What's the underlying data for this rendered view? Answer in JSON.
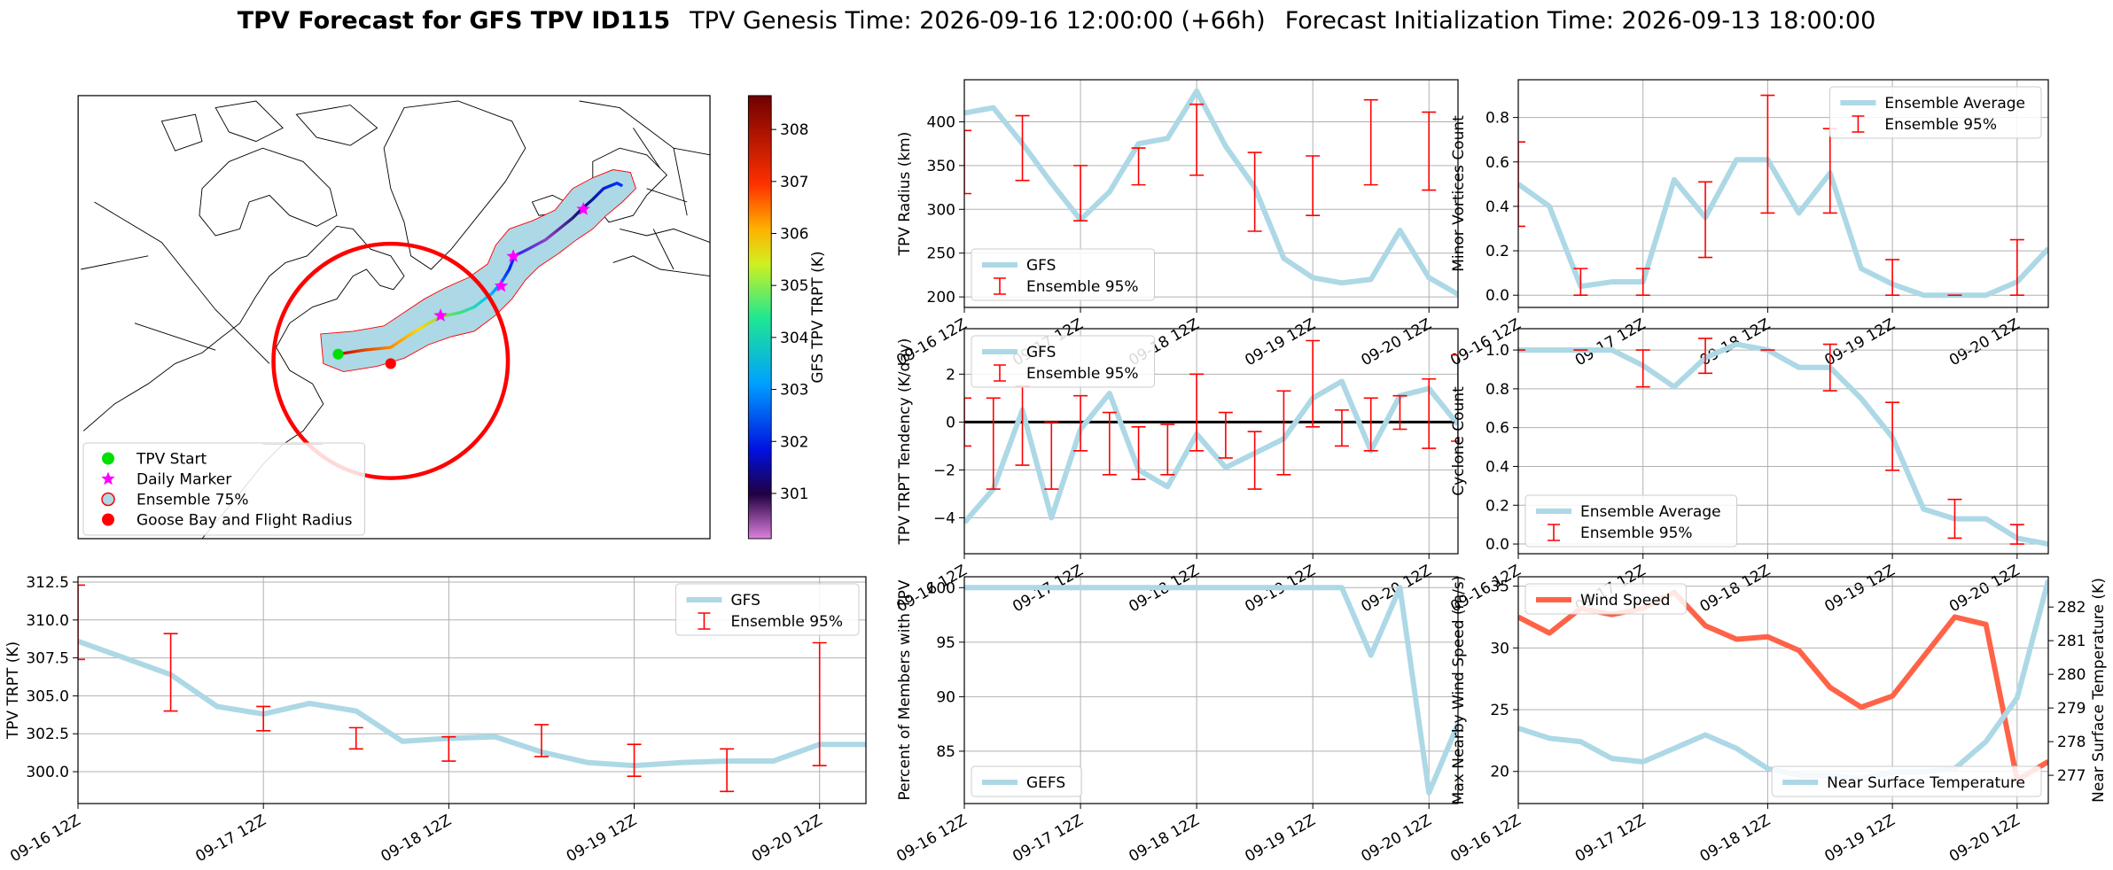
{
  "title": "TPV Forecast for GFS TPV ID115",
  "genesis": "TPV Genesis Time: 2026-09-16 12:00:00 (+66h)",
  "init": "Forecast Initialization Time: 2026-09-13 18:00:00",
  "chart_data": [
    {
      "type": "map",
      "colorbar_label": "GFS TPV TRPT (K)",
      "clim": [
        300.13,
        308.65
      ],
      "cticks": [
        301,
        302,
        303,
        304,
        305,
        306,
        307,
        308
      ],
      "legend_loc": "lower left",
      "legend": [
        {
          "label": "TPV Start",
          "color": "#00e000",
          "marker": "circle"
        },
        {
          "label": "Daily Marker",
          "color": "#ff00ff",
          "marker": "star"
        },
        {
          "label": "Ensemble 75%",
          "color": "#add8e6",
          "edgecolor": "red",
          "marker": "circle"
        },
        {
          "label": "Goose Bay and Flight Radius",
          "color": "red",
          "marker": "circle"
        }
      ]
    },
    {
      "type": "line",
      "ylabel": "TPV Radius (km)",
      "x": [
        "09-16 12Z",
        "09-16 18Z",
        "09-17 00Z",
        "09-17 06Z",
        "09-17 12Z",
        "09-17 18Z",
        "09-18 00Z",
        "09-18 06Z",
        "09-18 12Z",
        "09-18 18Z",
        "09-19 00Z",
        "09-19 06Z",
        "09-19 12Z",
        "09-19 18Z",
        "09-20 00Z",
        "09-20 06Z",
        "09-20 12Z",
        "09-20 18Z"
      ],
      "series": [
        {
          "name": "GFS",
          "color": "#add8e6",
          "values": [
            410,
            416,
            375,
            330,
            288,
            320,
            375,
            381,
            435,
            372,
            325,
            244,
            222,
            216,
            220,
            276,
            222,
            203
          ]
        }
      ],
      "ensemble": {
        "name": "Ensemble 95%",
        "color": "red",
        "x": [
          "09-16 12Z",
          "09-17 00Z",
          "09-17 12Z",
          "09-18 00Z",
          "09-18 12Z",
          "09-19 00Z",
          "09-19 12Z",
          "09-20 00Z",
          "09-20 12Z"
        ],
        "low": [
          318,
          333,
          287,
          328,
          339,
          275,
          293,
          328,
          322
        ],
        "high": [
          390,
          407,
          350,
          370,
          420,
          365,
          361,
          425,
          411
        ]
      },
      "xlim": [
        "09-16 12Z",
        "09-20 18Z"
      ],
      "xticks": [
        "09-16 12Z",
        "09-17 12Z",
        "09-18 12Z",
        "09-19 12Z",
        "09-20 12Z"
      ],
      "ylim": [
        188,
        448
      ],
      "yticks": [
        200,
        250,
        300,
        350,
        400
      ],
      "grid": true,
      "legend": "lower left"
    },
    {
      "type": "line",
      "ylabel": "Minor Vortices Count",
      "x": [
        "09-16 12Z",
        "09-16 18Z",
        "09-17 00Z",
        "09-17 06Z",
        "09-17 12Z",
        "09-17 18Z",
        "09-18 00Z",
        "09-18 06Z",
        "09-18 12Z",
        "09-18 18Z",
        "09-19 00Z",
        "09-19 06Z",
        "09-19 12Z",
        "09-19 18Z",
        "09-20 00Z",
        "09-20 06Z",
        "09-20 12Z",
        "09-20 18Z"
      ],
      "series": [
        {
          "name": "Ensemble Average",
          "color": "#add8e6",
          "values": [
            0.5,
            0.4,
            0.04,
            0.06,
            0.06,
            0.52,
            0.35,
            0.61,
            0.61,
            0.37,
            0.55,
            0.12,
            0.05,
            0,
            0,
            0,
            0.06,
            0.21
          ]
        }
      ],
      "ensemble": {
        "name": "Ensemble 95%",
        "color": "red",
        "x": [
          "09-16 12Z",
          "09-17 00Z",
          "09-17 12Z",
          "09-18 00Z",
          "09-18 12Z",
          "09-19 00Z",
          "09-19 12Z",
          "09-20 00Z",
          "09-20 12Z"
        ],
        "low": [
          0.31,
          0,
          0,
          0.17,
          0.37,
          0.37,
          0,
          0,
          0
        ],
        "high": [
          0.69,
          0.12,
          0.12,
          0.51,
          0.9,
          0.75,
          0.16,
          0,
          0.25
        ]
      },
      "xlim": [
        "09-16 12Z",
        "09-20 18Z"
      ],
      "xticks": [
        "09-16 12Z",
        "09-17 12Z",
        "09-18 12Z",
        "09-19 12Z",
        "09-20 12Z"
      ],
      "ylim": [
        -0.055,
        0.97
      ],
      "yticks": [
        {
          "value": 0,
          "label": "0.0"
        },
        0.2,
        0.4,
        0.6,
        0.8
      ],
      "grid": true,
      "legend": "upper right"
    },
    {
      "type": "line",
      "ylabel": "TPV TRPT Tendency (K/day)",
      "x": [
        "09-16 12Z",
        "09-16 18Z",
        "09-17 00Z",
        "09-17 06Z",
        "09-17 12Z",
        "09-17 18Z",
        "09-18 00Z",
        "09-18 06Z",
        "09-18 12Z",
        "09-18 18Z",
        "09-19 00Z",
        "09-19 06Z",
        "09-19 12Z",
        "09-19 18Z",
        "09-20 00Z",
        "09-20 06Z",
        "09-20 12Z",
        "09-20 18Z"
      ],
      "series": [
        {
          "name": "GFS",
          "color": "#add8e6",
          "values": [
            -4.2,
            -2.8,
            0.5,
            -4.0,
            -0.3,
            1.2,
            -2.0,
            -2.7,
            -0.5,
            -1.9,
            -1.3,
            -0.7,
            1.0,
            1.7,
            -1.2,
            1.1,
            1.4,
            -0.1
          ]
        }
      ],
      "ensemble": {
        "name": "Ensemble 95%",
        "color": "red",
        "x": [
          "09-16 12Z",
          "09-16 18Z",
          "09-17 00Z",
          "09-17 06Z",
          "09-17 12Z",
          "09-17 18Z",
          "09-18 00Z",
          "09-18 06Z",
          "09-18 12Z",
          "09-18 18Z",
          "09-19 00Z",
          "09-19 06Z",
          "09-19 12Z",
          "09-19 18Z",
          "09-20 00Z",
          "09-20 06Z",
          "09-20 12Z",
          "09-20 18Z"
        ],
        "low": [
          -1,
          -2.8,
          -1.8,
          -2.8,
          -1.2,
          -2.2,
          -2.4,
          -2.2,
          -1.2,
          -1.5,
          -2.8,
          -2.2,
          -0.2,
          -1.0,
          -1.2,
          -0.3,
          -1.1,
          -0.8
        ],
        "high": [
          1,
          1.0,
          1.5,
          0,
          1.1,
          0.4,
          -0.2,
          -0.1,
          2.0,
          0.4,
          -0.4,
          1.3,
          3.4,
          0.5,
          1.0,
          1.1,
          1.8,
          2.8
        ]
      },
      "hline": 0,
      "xlim": [
        "09-16 12Z",
        "09-20 18Z"
      ],
      "xticks": [
        "09-16 12Z",
        "09-17 12Z",
        "09-18 12Z",
        "09-19 12Z",
        "09-20 12Z"
      ],
      "ylim": [
        -5.5,
        3.9
      ],
      "yticks": [
        {
          "value": -4,
          "label": "−4"
        },
        {
          "value": -2,
          "label": "−2"
        },
        0,
        2
      ],
      "grid": true,
      "legend": "upper left"
    },
    {
      "type": "line",
      "ylabel": "Cyclone Count",
      "x": [
        "09-16 12Z",
        "09-16 18Z",
        "09-17 00Z",
        "09-17 06Z",
        "09-17 12Z",
        "09-17 18Z",
        "09-18 00Z",
        "09-18 06Z",
        "09-18 12Z",
        "09-18 18Z",
        "09-19 00Z",
        "09-19 06Z",
        "09-19 12Z",
        "09-19 18Z",
        "09-20 00Z",
        "09-20 06Z",
        "09-20 12Z",
        "09-20 18Z"
      ],
      "series": [
        {
          "name": "Ensemble Average",
          "color": "#add8e6",
          "values": [
            1,
            1,
            1,
            1,
            0.92,
            0.81,
            0.96,
            1.03,
            1.0,
            0.91,
            0.91,
            0.75,
            0.55,
            0.18,
            0.13,
            0.13,
            0.03,
            0
          ]
        }
      ],
      "ensemble": {
        "name": "Ensemble 95%",
        "color": "red",
        "x": [
          "09-16 12Z",
          "09-17 00Z",
          "09-17 12Z",
          "09-18 00Z",
          "09-18 12Z",
          "09-19 00Z",
          "09-19 12Z",
          "09-20 00Z",
          "09-20 12Z"
        ],
        "low": [
          1,
          1,
          0.81,
          0.88,
          1,
          0.79,
          0.38,
          0.03,
          0
        ],
        "high": [
          1,
          1,
          1.0,
          1.06,
          1,
          1.03,
          0.73,
          0.23,
          0.1
        ]
      },
      "xlim": [
        "09-16 12Z",
        "09-20 18Z"
      ],
      "xticks": [
        "09-16 12Z",
        "09-17 12Z",
        "09-18 12Z",
        "09-19 12Z",
        "09-20 12Z"
      ],
      "ylim": [
        -0.05,
        1.11
      ],
      "yticks": [
        {
          "value": 0,
          "label": "0.0"
        },
        0.2,
        0.4,
        0.6,
        0.8,
        {
          "value": 1,
          "label": "1.0"
        }
      ],
      "grid": true,
      "legend": "lower left"
    },
    {
      "type": "line",
      "ylabel": "TPV TRPT (K)",
      "x": [
        "09-16 12Z",
        "09-16 18Z",
        "09-17 00Z",
        "09-17 06Z",
        "09-17 12Z",
        "09-17 18Z",
        "09-18 00Z",
        "09-18 06Z",
        "09-18 12Z",
        "09-18 18Z",
        "09-19 00Z",
        "09-19 06Z",
        "09-19 12Z",
        "09-19 18Z",
        "09-20 00Z",
        "09-20 06Z",
        "09-20 12Z",
        "09-20 18Z"
      ],
      "series": [
        {
          "name": "GFS",
          "color": "#add8e6",
          "values": [
            308.6,
            307.5,
            306.4,
            304.3,
            303.8,
            304.5,
            304.0,
            302.0,
            302.2,
            302.3,
            301.3,
            300.6,
            300.4,
            300.6,
            300.7,
            300.7,
            301.8,
            301.8
          ]
        }
      ],
      "ensemble": {
        "name": "Ensemble 95%",
        "color": "red",
        "x": [
          "09-16 12Z",
          "09-17 00Z",
          "09-17 12Z",
          "09-18 00Z",
          "09-18 12Z",
          "09-19 00Z",
          "09-19 12Z",
          "09-20 00Z",
          "09-20 12Z"
        ],
        "low": [
          307.4,
          304.0,
          302.7,
          301.5,
          300.7,
          301.0,
          299.7,
          298.7,
          300.4
        ],
        "high": [
          312.3,
          309.1,
          304.3,
          302.9,
          302.3,
          303.1,
          301.8,
          301.5,
          308.5
        ]
      },
      "xlim": [
        "09-16 12Z",
        "09-20 18Z"
      ],
      "xticks": [
        "09-16 12Z",
        "09-17 12Z",
        "09-18 12Z",
        "09-19 12Z",
        "09-20 12Z"
      ],
      "ylim": [
        297.9,
        312.85
      ],
      "yticks": [
        {
          "value": 300,
          "label": "300.0"
        },
        302.5,
        {
          "value": 305,
          "label": "305.0"
        },
        307.5,
        {
          "value": 310,
          "label": "310.0"
        },
        312.5
      ],
      "grid": true,
      "legend": "upper right"
    },
    {
      "type": "line",
      "ylabel": "Percent of Members with TPV",
      "x": [
        "09-16 12Z",
        "09-16 18Z",
        "09-17 00Z",
        "09-17 06Z",
        "09-17 12Z",
        "09-17 18Z",
        "09-18 00Z",
        "09-18 06Z",
        "09-18 12Z",
        "09-18 18Z",
        "09-19 00Z",
        "09-19 06Z",
        "09-19 12Z",
        "09-19 18Z",
        "09-20 00Z",
        "09-20 06Z",
        "09-20 12Z",
        "09-20 18Z"
      ],
      "series": [
        {
          "name": "GEFS",
          "color": "#add8e6",
          "values": [
            100,
            100,
            100,
            100,
            100,
            100,
            100,
            100,
            100,
            100,
            100,
            100,
            100,
            100,
            93.8,
            100,
            81.2,
            87.5
          ]
        }
      ],
      "xlim": [
        "09-16 12Z",
        "09-20 18Z"
      ],
      "xticks": [
        "09-16 12Z",
        "09-17 12Z",
        "09-18 12Z",
        "09-19 12Z",
        "09-20 12Z"
      ],
      "ylim": [
        80.2,
        101
      ],
      "yticks": [
        85,
        90,
        95,
        100
      ],
      "grid": true,
      "legend": "lower left"
    },
    {
      "type": "line",
      "ylabel": "Max Nearby Wind Speed (m/s)",
      "ylabel_color": "tomato",
      "y2label": "Near Surface Temperature (K)",
      "y2label_color": "royalblue",
      "x": [
        "09-16 12Z",
        "09-16 18Z",
        "09-17 00Z",
        "09-17 06Z",
        "09-17 12Z",
        "09-17 18Z",
        "09-18 00Z",
        "09-18 06Z",
        "09-18 12Z",
        "09-18 18Z",
        "09-19 00Z",
        "09-19 06Z",
        "09-19 12Z",
        "09-19 18Z",
        "09-20 00Z",
        "09-20 06Z",
        "09-20 12Z",
        "09-20 18Z"
      ],
      "series": [
        {
          "name": "Wind Speed",
          "color": "tomato",
          "values": [
            32.5,
            31.2,
            33.2,
            32.7,
            33.2,
            34.5,
            31.8,
            30.7,
            30.9,
            29.8,
            26.8,
            25.2,
            26.1,
            29.3,
            32.5,
            31.9,
            19.3,
            20.8
          ]
        },
        {
          "name": "Near Surface Temperature",
          "color": "#add8e6",
          "axis": "y2",
          "values": [
            278.4,
            278.1,
            278.0,
            277.5,
            277.4,
            277.8,
            278.2,
            277.8,
            277.2,
            277.0,
            277.0,
            276.9,
            277.1,
            277.1,
            277.2,
            278.0,
            279.3,
            282.8
          ]
        }
      ],
      "xlim": [
        "09-16 12Z",
        "09-20 18Z"
      ],
      "xticks": [
        "09-16 12Z",
        "09-17 12Z",
        "09-18 12Z",
        "09-19 12Z",
        "09-20 12Z"
      ],
      "ylim": [
        17.4,
        35.76
      ],
      "yticks": [
        20,
        25,
        30,
        35
      ],
      "y2lim": [
        276.16,
        282.9
      ],
      "y2ticks": [
        277,
        278,
        279,
        280,
        281,
        282
      ],
      "grid": true,
      "legend": "upper left",
      "legend2": "lower right"
    }
  ]
}
